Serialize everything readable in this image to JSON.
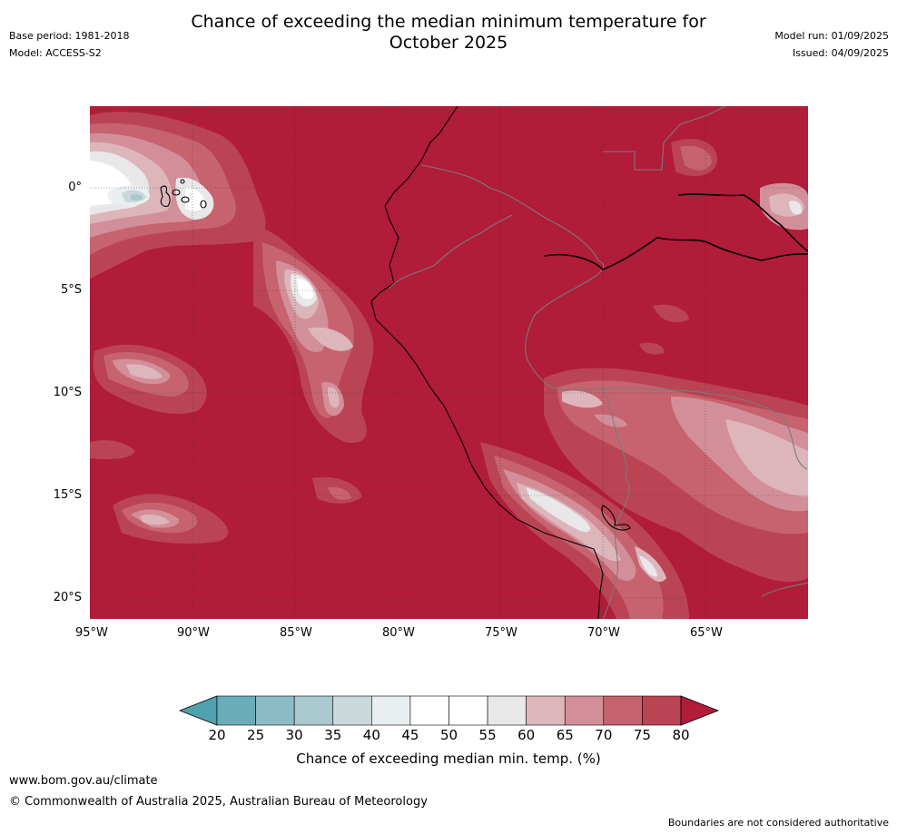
{
  "header": {
    "title_line1": "Chance of exceeding the median minimum temperature for",
    "title_line2": "October 2025",
    "base_period": "Base period: 1981-2018",
    "model": "Model: ACCESS-S2",
    "model_run": "Model run: 01/09/2025",
    "issued": "Issued: 04/09/2025"
  },
  "map": {
    "lon_ticks": [
      "95°W",
      "90°W",
      "85°W",
      "80°W",
      "75°W",
      "70°W",
      "65°W"
    ],
    "lat_ticks": [
      "0°",
      "5°S",
      "10°S",
      "15°S",
      "20°S"
    ],
    "region": "Eastern Pacific / western South America",
    "dominant_category": "80+"
  },
  "colorbar": {
    "label": "Chance of exceeding median min. temp. (%)",
    "ticks": [
      "20",
      "25",
      "30",
      "35",
      "40",
      "45",
      "50",
      "55",
      "60",
      "65",
      "70",
      "75",
      "80"
    ],
    "colors": [
      "#4fa1ae",
      "#6aadb9",
      "#8bbcc6",
      "#aac9ce",
      "#cad8db",
      "#e9eef0",
      "#ffffff",
      "#ffffff",
      "#e8e8e8",
      "#ddb6bc",
      "#d38f99",
      "#c6636f",
      "#bb4454",
      "#b11c38"
    ]
  },
  "footer": {
    "url": "www.bom.gov.au/climate",
    "copyright": "© Commonwealth of Australia 2025, Australian Bureau of Meteorology",
    "disclaimer": "Boundaries are not considered authoritative"
  }
}
